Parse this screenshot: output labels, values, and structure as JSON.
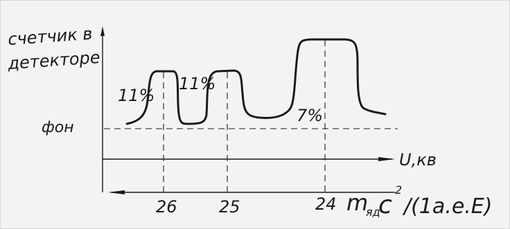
{
  "y_axis_label_line1": "счетчик в",
  "y_axis_label_line2": "детекторе",
  "background_label": "фон",
  "voltage_axis_label": "U,кв",
  "peak_labels": [
    "11%",
    "11%",
    "7%"
  ],
  "ticks": [
    "26",
    "25",
    "24"
  ],
  "mass_axis_label_main": "m",
  "mass_axis_label_sub": "яд",
  "mass_axis_label_c": "c",
  "mass_axis_label_exp": "2",
  "mass_axis_label_unit": "/(1а.е.Е)",
  "colors": {
    "ink": "#1a1a1a",
    "background": "#f3f3f3"
  }
}
